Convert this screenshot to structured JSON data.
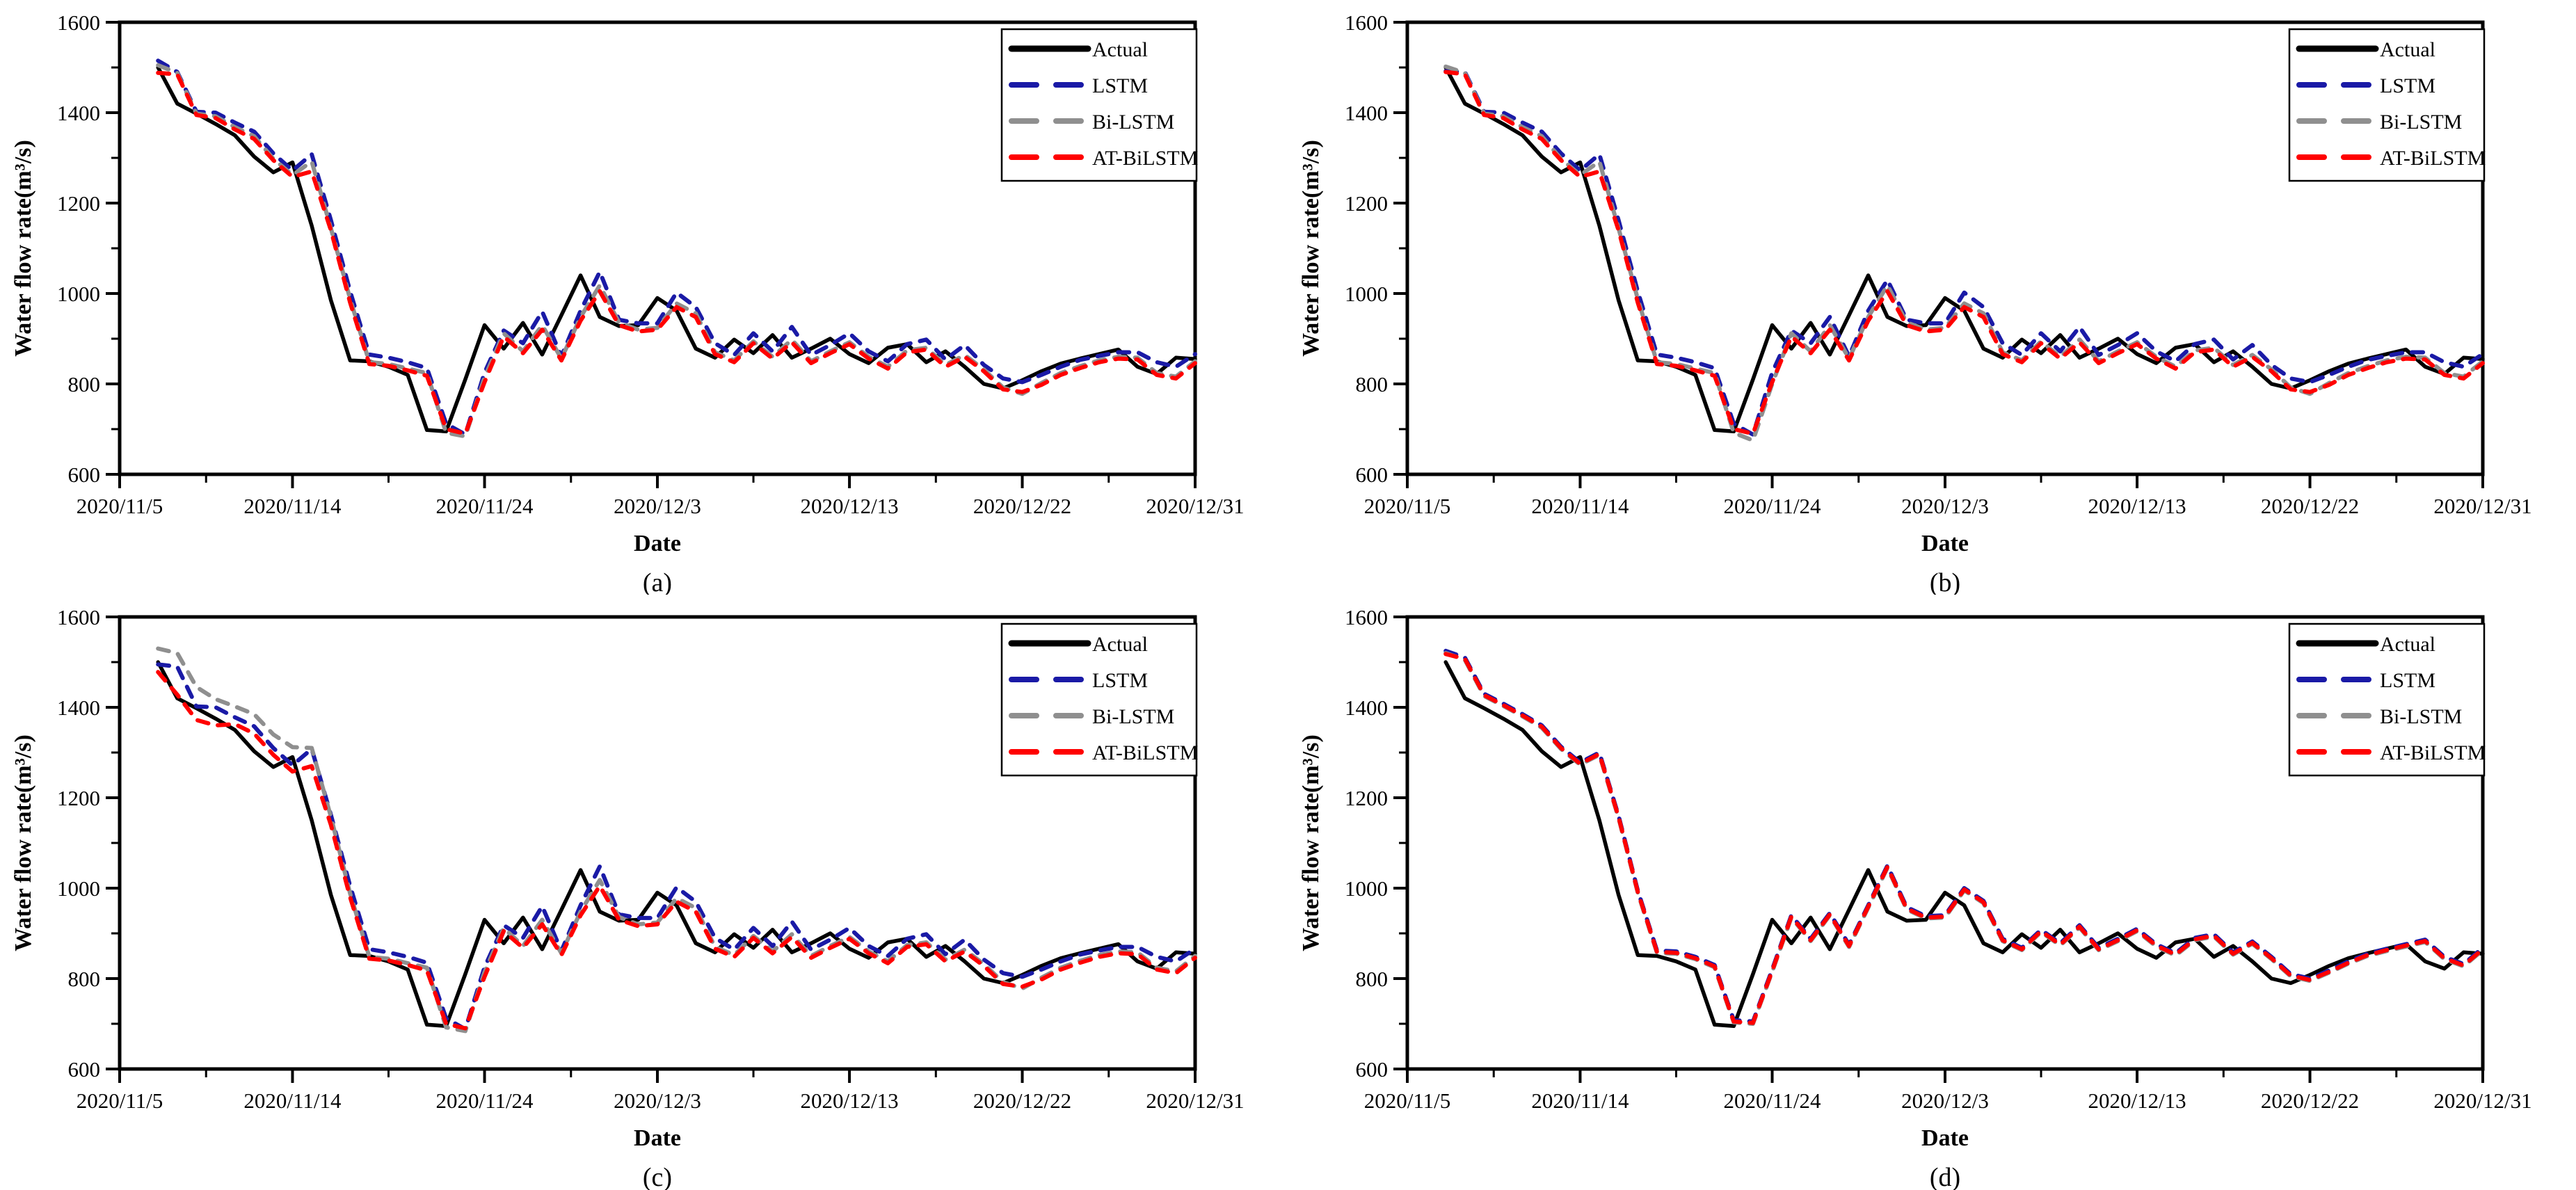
{
  "figure": {
    "background_color": "#ffffff",
    "y_axis_label": "Water flow rate(m³/s)",
    "x_axis_label": "Date",
    "y_tick_labels": [
      "600",
      "800",
      "1000",
      "1200",
      "1400",
      "1600"
    ],
    "y_ticks": [
      600,
      800,
      1000,
      1200,
      1400,
      1600
    ],
    "y_range": [
      600,
      1600
    ],
    "x_tick_labels": [
      "2020/11/5",
      "2020/11/14",
      "2020/11/24",
      "2020/12/3",
      "2020/12/13",
      "2020/12/22",
      "2020/12/31"
    ],
    "x_tick_day_offsets": [
      0,
      9,
      19,
      28,
      38,
      47,
      56
    ],
    "x_total_days": 56,
    "data_start_day_offset": 2,
    "data_start_date": "2020/11/7",
    "data_end_date": "2020/12/31",
    "legend_labels": [
      "Actual",
      "LSTM",
      "Bi-LSTM",
      "AT-BiLSTM"
    ],
    "colors": {
      "actual": "#000000",
      "lstm": "#1a1aa6",
      "bilstm": "#8f8f8f",
      "atbilstm": "#ff0000"
    }
  },
  "chart_data": [
    {
      "type": "line",
      "id": "a",
      "caption": "(a)",
      "title": "",
      "xlabel": "Date",
      "ylabel": "Water flow rate(m³/s)",
      "ylim": [
        600,
        1600
      ],
      "grid": false,
      "legend_position": "top-right",
      "series": [
        {
          "name": "Actual",
          "color": "#000000",
          "dash": "solid",
          "values": [
            1500,
            1420,
            1398,
            1375,
            1350,
            1303,
            1268,
            1290,
            1150,
            985,
            852,
            850,
            838,
            820,
            698,
            695,
            810,
            930,
            878,
            935,
            865,
            952,
            1040,
            948,
            928,
            930,
            990,
            962,
            878,
            858,
            898,
            868,
            908,
            858,
            878,
            900,
            866,
            846,
            880,
            888,
            848,
            872,
            838,
            800,
            790,
            808,
            828,
            845,
            856,
            866,
            876,
            838,
            822,
            858,
            855
          ]
        },
        {
          "name": "LSTM",
          "color": "#1a1aa6",
          "dash": "dashed",
          "values": [
            1515,
            1490,
            1402,
            1400,
            1378,
            1358,
            1310,
            1272,
            1308,
            1162,
            1005,
            865,
            858,
            848,
            835,
            712,
            688,
            825,
            918,
            890,
            960,
            861,
            962,
            1048,
            942,
            934,
            934,
            1002,
            970,
            890,
            864,
            912,
            872,
            926,
            864,
            886,
            912,
            872,
            850,
            888,
            898,
            854,
            886,
            842,
            812,
            804,
            820,
            838,
            853,
            862,
            870,
            870,
            848,
            838,
            866
          ]
        },
        {
          "name": "Bi-LSTM",
          "color": "#8f8f8f",
          "dash": "dashed",
          "values": [
            1505,
            1488,
            1398,
            1392,
            1368,
            1348,
            1298,
            1262,
            1292,
            1144,
            988,
            848,
            844,
            834,
            824,
            692,
            684,
            814,
            912,
            872,
            930,
            856,
            948,
            1018,
            936,
            920,
            924,
            978,
            956,
            870,
            852,
            894,
            860,
            898,
            850,
            872,
            892,
            860,
            838,
            874,
            880,
            842,
            864,
            832,
            792,
            778,
            802,
            824,
            839,
            852,
            860,
            858,
            824,
            816,
            850
          ]
        },
        {
          "name": "AT-BiLSTM",
          "color": "#ff0000",
          "dash": "dashed",
          "values": [
            1488,
            1485,
            1395,
            1388,
            1363,
            1342,
            1295,
            1258,
            1270,
            1140,
            980,
            844,
            840,
            830,
            818,
            700,
            690,
            804,
            905,
            868,
            920,
            852,
            940,
            1005,
            930,
            916,
            920,
            970,
            948,
            866,
            848,
            890,
            856,
            892,
            846,
            868,
            888,
            856,
            834,
            870,
            876,
            838,
            860,
            828,
            788,
            782,
            798,
            820,
            835,
            848,
            856,
            854,
            820,
            812,
            846
          ]
        }
      ]
    },
    {
      "type": "line",
      "id": "b",
      "caption": "(b)",
      "title": "",
      "xlabel": "Date",
      "ylabel": "Water flow rate(m³/s)",
      "ylim": [
        600,
        1600
      ],
      "grid": false,
      "legend_position": "top-right",
      "series": [
        {
          "name": "Actual",
          "color": "#000000",
          "dash": "solid",
          "values": [
            1500,
            1420,
            1398,
            1375,
            1350,
            1303,
            1268,
            1290,
            1150,
            985,
            852,
            850,
            838,
            820,
            698,
            695,
            810,
            930,
            878,
            935,
            865,
            952,
            1040,
            948,
            928,
            930,
            990,
            962,
            878,
            858,
            898,
            868,
            908,
            858,
            878,
            900,
            866,
            846,
            880,
            888,
            848,
            872,
            838,
            800,
            790,
            808,
            828,
            845,
            856,
            866,
            876,
            838,
            822,
            858,
            855
          ]
        },
        {
          "name": "LSTM",
          "color": "#1a1aa6",
          "dash": "dashed",
          "values": [
            1492,
            1490,
            1402,
            1400,
            1378,
            1358,
            1310,
            1272,
            1308,
            1162,
            1005,
            865,
            858,
            848,
            835,
            712,
            688,
            825,
            918,
            890,
            948,
            861,
            962,
            1030,
            942,
            934,
            934,
            1002,
            970,
            890,
            864,
            912,
            872,
            926,
            864,
            886,
            912,
            872,
            850,
            888,
            898,
            854,
            886,
            842,
            812,
            804,
            820,
            838,
            853,
            862,
            870,
            870,
            848,
            838,
            866
          ]
        },
        {
          "name": "Bi-LSTM",
          "color": "#8f8f8f",
          "dash": "dashed",
          "values": [
            1502,
            1488,
            1398,
            1392,
            1368,
            1348,
            1298,
            1262,
            1292,
            1144,
            988,
            848,
            844,
            834,
            824,
            692,
            675,
            800,
            912,
            872,
            930,
            856,
            948,
            1018,
            936,
            920,
            924,
            978,
            956,
            870,
            852,
            894,
            860,
            898,
            850,
            872,
            892,
            860,
            838,
            874,
            880,
            842,
            864,
            832,
            792,
            778,
            802,
            824,
            839,
            852,
            860,
            858,
            824,
            816,
            850
          ]
        },
        {
          "name": "AT-BiLSTM",
          "color": "#ff0000",
          "dash": "dashed",
          "values": [
            1490,
            1485,
            1395,
            1388,
            1363,
            1342,
            1295,
            1258,
            1270,
            1140,
            980,
            844,
            840,
            830,
            818,
            700,
            690,
            804,
            905,
            868,
            920,
            852,
            940,
            1005,
            930,
            916,
            920,
            970,
            948,
            866,
            848,
            890,
            856,
            892,
            846,
            868,
            888,
            856,
            834,
            870,
            876,
            838,
            860,
            828,
            788,
            782,
            798,
            820,
            835,
            848,
            856,
            854,
            820,
            812,
            846
          ]
        }
      ]
    },
    {
      "type": "line",
      "id": "c",
      "caption": "(c)",
      "title": "",
      "xlabel": "Date",
      "ylabel": "Water flow rate(m³/s)",
      "ylim": [
        600,
        1600
      ],
      "grid": false,
      "legend_position": "top-right",
      "series": [
        {
          "name": "Actual",
          "color": "#000000",
          "dash": "solid",
          "values": [
            1500,
            1420,
            1398,
            1375,
            1350,
            1303,
            1268,
            1290,
            1150,
            985,
            852,
            850,
            838,
            820,
            698,
            695,
            810,
            930,
            878,
            935,
            865,
            952,
            1040,
            948,
            928,
            930,
            990,
            962,
            878,
            858,
            898,
            868,
            908,
            858,
            878,
            900,
            866,
            846,
            880,
            888,
            848,
            872,
            838,
            800,
            790,
            808,
            828,
            845,
            856,
            866,
            876,
            838,
            822,
            858,
            855
          ]
        },
        {
          "name": "LSTM",
          "color": "#1a1aa6",
          "dash": "dashed",
          "values": [
            1495,
            1490,
            1402,
            1400,
            1378,
            1358,
            1310,
            1272,
            1308,
            1162,
            1005,
            865,
            858,
            848,
            835,
            712,
            688,
            825,
            918,
            890,
            960,
            861,
            962,
            1048,
            942,
            934,
            934,
            1002,
            970,
            890,
            864,
            912,
            872,
            926,
            864,
            886,
            912,
            872,
            850,
            888,
            898,
            854,
            886,
            842,
            812,
            804,
            820,
            838,
            853,
            862,
            870,
            870,
            848,
            838,
            866
          ]
        },
        {
          "name": "Bi-LSTM",
          "color": "#8f8f8f",
          "dash": "dashed",
          "values": [
            1530,
            1520,
            1445,
            1418,
            1402,
            1385,
            1340,
            1312,
            1310,
            1158,
            988,
            848,
            844,
            834,
            824,
            692,
            684,
            814,
            912,
            872,
            930,
            856,
            948,
            1018,
            936,
            920,
            924,
            978,
            956,
            870,
            852,
            894,
            860,
            898,
            850,
            872,
            892,
            860,
            838,
            874,
            880,
            842,
            864,
            832,
            792,
            778,
            802,
            824,
            839,
            852,
            860,
            858,
            824,
            816,
            850
          ]
        },
        {
          "name": "AT-BiLSTM",
          "color": "#ff0000",
          "dash": "dashed",
          "values": [
            1478,
            1428,
            1372,
            1360,
            1363,
            1342,
            1295,
            1258,
            1270,
            1140,
            980,
            844,
            840,
            830,
            818,
            700,
            690,
            804,
            905,
            868,
            920,
            852,
            940,
            1005,
            930,
            916,
            920,
            970,
            948,
            866,
            848,
            890,
            856,
            892,
            846,
            868,
            888,
            856,
            834,
            870,
            876,
            838,
            860,
            828,
            788,
            782,
            798,
            820,
            835,
            848,
            856,
            854,
            820,
            812,
            846
          ]
        }
      ]
    },
    {
      "type": "line",
      "id": "d",
      "caption": "(d)",
      "title": "",
      "xlabel": "Date",
      "ylabel": "Water flow rate(m³/s)",
      "ylim": [
        600,
        1600
      ],
      "grid": false,
      "legend_position": "top-right",
      "series": [
        {
          "name": "Actual",
          "color": "#000000",
          "dash": "solid",
          "values": [
            1500,
            1420,
            1398,
            1375,
            1350,
            1303,
            1268,
            1290,
            1150,
            985,
            852,
            850,
            838,
            820,
            698,
            695,
            810,
            930,
            878,
            935,
            865,
            952,
            1040,
            948,
            928,
            930,
            990,
            962,
            878,
            858,
            898,
            868,
            908,
            858,
            878,
            900,
            866,
            846,
            880,
            888,
            848,
            872,
            838,
            800,
            790,
            808,
            828,
            845,
            856,
            866,
            876,
            838,
            822,
            858,
            855
          ]
        },
        {
          "name": "LSTM",
          "color": "#1a1aa6",
          "dash": "dashed",
          "values": [
            1525,
            1510,
            1430,
            1408,
            1385,
            1360,
            1313,
            1278,
            1300,
            1160,
            995,
            862,
            860,
            848,
            830,
            708,
            705,
            820,
            940,
            888,
            945,
            875,
            962,
            1050,
            958,
            938,
            940,
            1000,
            972,
            888,
            868,
            908,
            878,
            918,
            868,
            888,
            910,
            876,
            856,
            890,
            898,
            858,
            882,
            848,
            810,
            800,
            818,
            838,
            855,
            866,
            876,
            886,
            848,
            832,
            868
          ]
        },
        {
          "name": "Bi-LSTM",
          "color": "#8f8f8f",
          "dash": "dashed",
          "values": [
            1520,
            1505,
            1425,
            1403,
            1380,
            1355,
            1308,
            1273,
            1295,
            1155,
            990,
            857,
            855,
            843,
            825,
            703,
            700,
            815,
            935,
            883,
            940,
            870,
            957,
            1045,
            953,
            933,
            935,
            995,
            967,
            883,
            863,
            903,
            873,
            913,
            863,
            883,
            905,
            871,
            851,
            885,
            893,
            853,
            877,
            843,
            805,
            795,
            813,
            833,
            850,
            861,
            871,
            881,
            843,
            827,
            863
          ]
        },
        {
          "name": "AT-BiLSTM",
          "color": "#ff0000",
          "dash": "dashed",
          "values": [
            1518,
            1507,
            1427,
            1405,
            1382,
            1357,
            1310,
            1275,
            1297,
            1157,
            992,
            859,
            857,
            845,
            827,
            705,
            702,
            817,
            937,
            885,
            942,
            872,
            959,
            1047,
            955,
            935,
            937,
            997,
            969,
            885,
            865,
            905,
            875,
            915,
            865,
            885,
            907,
            873,
            853,
            887,
            895,
            855,
            879,
            845,
            807,
            797,
            815,
            835,
            852,
            863,
            873,
            883,
            845,
            829,
            865
          ]
        }
      ]
    }
  ]
}
